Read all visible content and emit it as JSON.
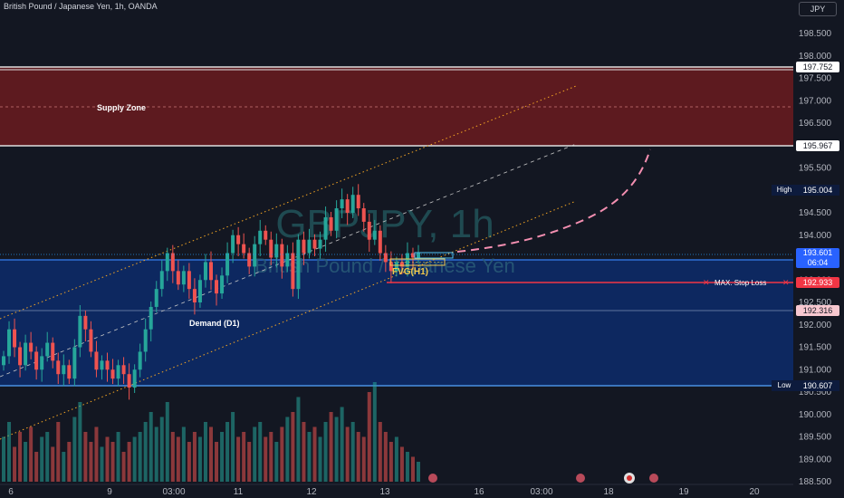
{
  "header": {
    "symbol_description": "British Pound / Japanese Yen, 1h, OANDA",
    "currency_button": "JPY"
  },
  "watermark": {
    "symbol": "GBPJPY, 1h",
    "name": "British Pound / Japanese Yen"
  },
  "zones": {
    "supply": {
      "label": "Supply Zone",
      "top": 197.752,
      "bottom": 195.967
    },
    "demand": {
      "label": "Demand (D1)",
      "top": 193.5,
      "bottom": 190.607,
      "mid": 192.316
    }
  },
  "annotations": {
    "fvg_label": "FVG(H1)",
    "stop_loss_label": "MAX. Stop Loss",
    "stop_loss_price": 192.933
  },
  "price_axis": {
    "ticks": [
      198.5,
      198.0,
      197.5,
      197.0,
      196.5,
      196.0,
      195.5,
      195.0,
      194.5,
      194.0,
      193.5,
      193.0,
      192.5,
      192.0,
      191.5,
      191.0,
      190.5,
      190.0,
      189.5,
      189.0,
      188.5
    ],
    "badges": {
      "supply_top": "197.752",
      "supply_bottom": "195.967",
      "high_label": "High",
      "high_value": "195.004",
      "current_price": "193.601",
      "countdown": "06:04",
      "stop_loss": "192.933",
      "demand_mid": "192.316",
      "low_label": "Low",
      "low_value": "190.607"
    }
  },
  "time_axis": {
    "labels": [
      "6",
      "9",
      "03:00",
      "11",
      "12",
      "13",
      "16",
      "03:00",
      "18",
      "19",
      "20"
    ]
  },
  "colors": {
    "background": "#131722",
    "supply_fill": "#5d1a1f",
    "demand_fill": "#0d2a66",
    "up_candle": "#26a69a",
    "down_candle": "#ef5350",
    "channel_orange": "#f5a623",
    "channel_mid": "#c8c8c8",
    "projection": "#f48fb1",
    "stop_loss": "#f23645",
    "price_line": "#2196f3",
    "fvg": "#f2c94c"
  },
  "chart_data": {
    "type": "candlestick",
    "symbol": "GBPJPY",
    "timeframe": "1h",
    "ylim": [
      188.3,
      199.0
    ],
    "close": [
      191.3,
      191.9,
      191.5,
      191.1,
      191.6,
      191.4,
      191.0,
      191.3,
      191.6,
      191.2,
      190.9,
      191.1,
      190.8,
      191.5,
      192.2,
      191.9,
      191.4,
      191.0,
      191.2,
      191.0,
      190.8,
      191.1,
      190.9,
      190.6,
      191.0,
      191.4,
      191.9,
      192.4,
      192.8,
      193.2,
      193.6,
      193.2,
      192.9,
      193.2,
      192.8,
      192.5,
      193.0,
      193.4,
      193.0,
      192.7,
      193.1,
      193.6,
      194.0,
      193.8,
      193.6,
      193.3,
      193.8,
      194.1,
      193.9,
      193.5,
      193.8,
      193.3,
      193.6,
      192.8,
      193.9,
      193.6,
      193.9,
      193.7,
      193.9,
      194.4,
      194.1,
      194.6,
      194.8,
      194.5,
      194.9,
      194.6,
      194.3,
      193.9,
      194.1,
      193.6,
      193.4,
      193.2,
      193.4,
      193.3,
      193.6,
      193.5,
      193.6
    ],
    "volume_relative": [
      0.45,
      0.6,
      0.35,
      0.5,
      0.4,
      0.55,
      0.3,
      0.45,
      0.5,
      0.35,
      0.6,
      0.3,
      0.4,
      0.65,
      0.8,
      0.5,
      0.4,
      0.55,
      0.35,
      0.45,
      0.4,
      0.5,
      0.3,
      0.4,
      0.45,
      0.5,
      0.6,
      0.7,
      0.55,
      0.65,
      0.8,
      0.5,
      0.45,
      0.55,
      0.4,
      0.5,
      0.45,
      0.6,
      0.55,
      0.4,
      0.5,
      0.6,
      0.7,
      0.45,
      0.5,
      0.4,
      0.55,
      0.6,
      0.45,
      0.5,
      0.4,
      0.55,
      0.65,
      0.7,
      0.85,
      0.6,
      0.5,
      0.55,
      0.45,
      0.6,
      0.7,
      0.65,
      0.75,
      0.55,
      0.6,
      0.5,
      0.45,
      0.9,
      1.0,
      0.6,
      0.5,
      0.4,
      0.45,
      0.35,
      0.3,
      0.25,
      0.2
    ],
    "high": 195.004,
    "low": 190.607,
    "current": 193.601
  }
}
